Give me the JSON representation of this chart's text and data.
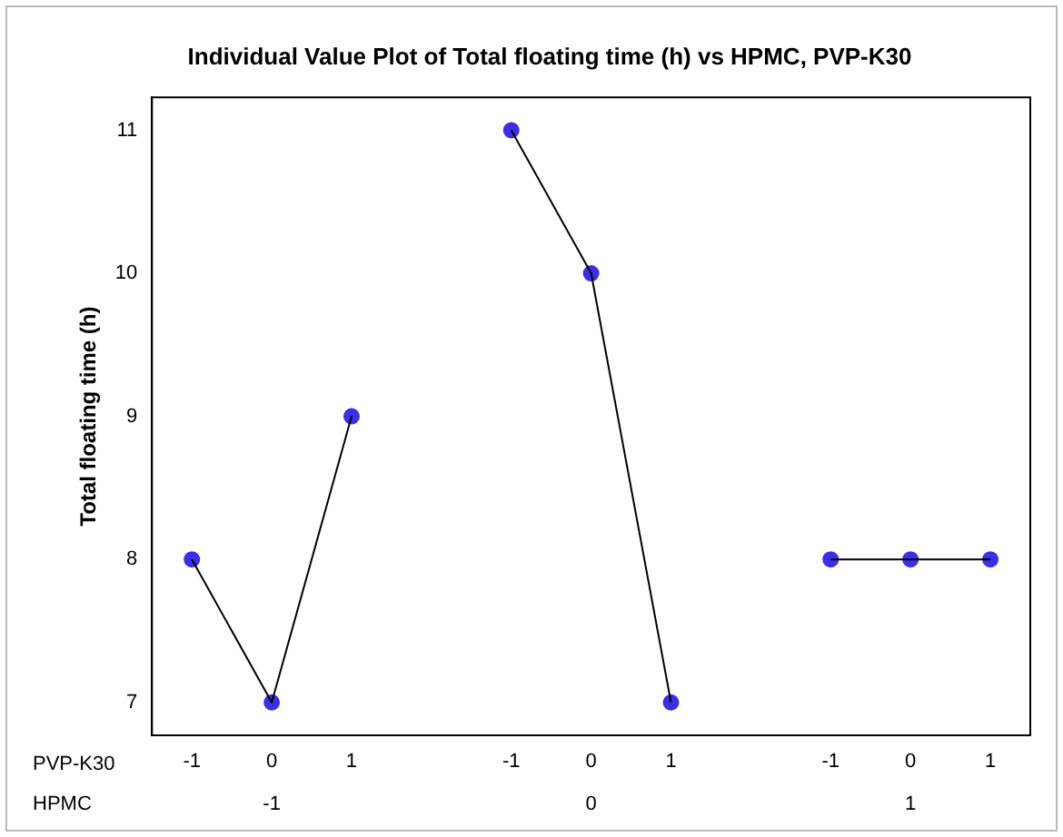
{
  "chart_data": {
    "type": "line",
    "title": "Individual Value Plot of Total floating time (h) vs HPMC, PVP-K30",
    "ylabel": "Total floating time (h)",
    "categories": [
      "-1",
      "0",
      "1",
      null,
      "-1",
      "0",
      "1",
      null,
      "-1",
      "0",
      "1"
    ],
    "series": [
      {
        "color": "#000000",
        "marker": "none",
        "values": [
          8,
          7,
          9,
          null,
          11,
          10,
          7,
          null,
          8,
          8,
          8
        ]
      },
      {
        "type": "scatter",
        "color": "#3d2ee6",
        "marker": "circle",
        "values": [
          8,
          7,
          9,
          null,
          11,
          10,
          7,
          null,
          8,
          8,
          8
        ]
      }
    ],
    "annotations": [
      "PVP-K30",
      "HPMC",
      "-1",
      "0",
      "1"
    ],
    "ylim": [
      6.77,
      11.23
    ],
    "yticks": [
      7,
      8,
      9,
      10,
      11
    ],
    "grid": false,
    "legend": false
  }
}
